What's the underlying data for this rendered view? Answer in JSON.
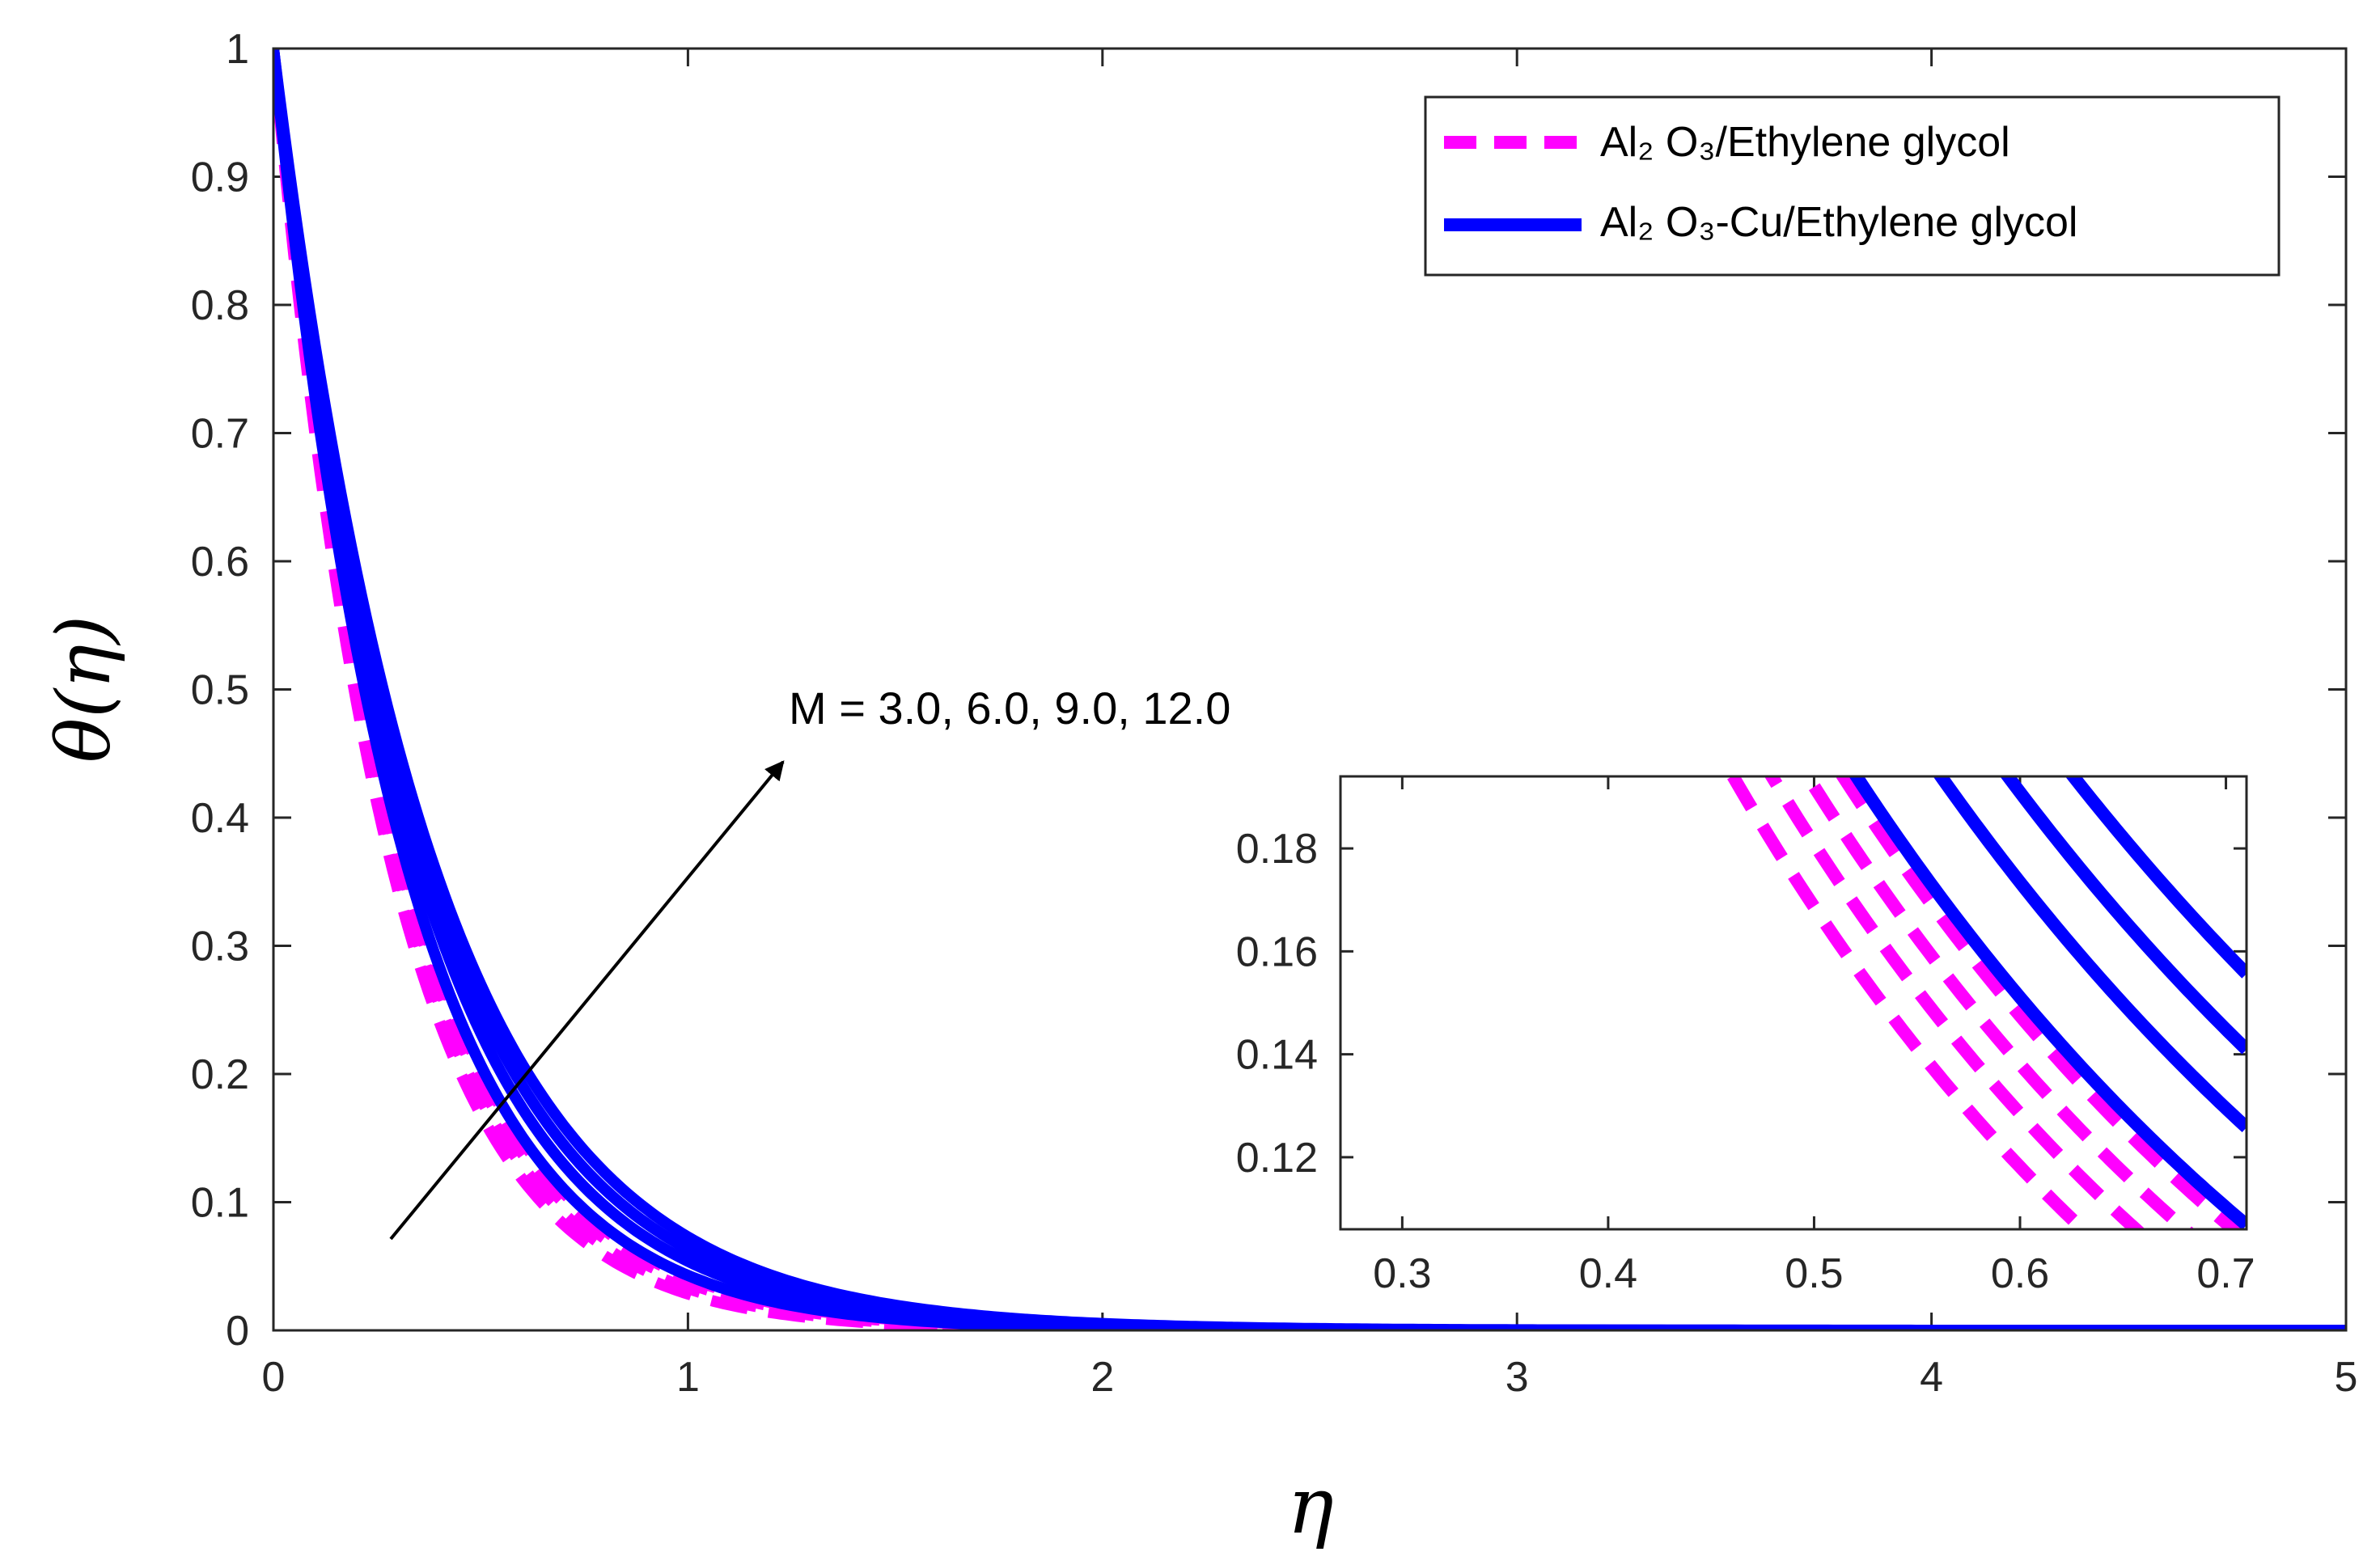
{
  "chart_data": {
    "type": "line",
    "xlabel": "η",
    "ylabel": "θ(η)",
    "xlim": [
      0,
      5
    ],
    "ylim": [
      0,
      1
    ],
    "xticks": [
      "0",
      "1",
      "2",
      "3",
      "4",
      "5"
    ],
    "yticks": [
      "0",
      "0.1",
      "0.2",
      "0.3",
      "0.4",
      "0.5",
      "0.6",
      "0.7",
      "0.8",
      "0.9",
      "1"
    ],
    "annotation": "M = 3.0, 6.0, 9.0, 12.0",
    "colors": {
      "nanofluid": "#ff00ff",
      "hybrid": "#0000ff",
      "axis": "#262626"
    },
    "legend": {
      "position": "top-right",
      "entries": [
        {
          "label": "Al₂ O₃/Ethylene glycol",
          "style": "dashed",
          "color": "#ff00ff"
        },
        {
          "label": "Al₂ O₃-Cu/Ethylene glycol",
          "style": "solid",
          "color": "#0000ff"
        }
      ]
    },
    "series": [
      {
        "name": "Al2O3/Ethylene glycol, M = 3.0",
        "group": "nanofluid",
        "decay": 3.56
      },
      {
        "name": "Al2O3/Ethylene glycol, M = 6.0",
        "group": "nanofluid",
        "decay": 3.42
      },
      {
        "name": "Al2O3/Ethylene glycol, M = 9.0",
        "group": "nanofluid",
        "decay": 3.3
      },
      {
        "name": "Al2O3/Ethylene glycol, M = 12.0",
        "group": "nanofluid",
        "decay": 3.19
      },
      {
        "name": "Al2O3-Cu/Ethylene glycol, M = 3.0",
        "group": "hybrid",
        "decay": 3.15
      },
      {
        "name": "Al2O3-Cu/Ethylene glycol, M = 6.0",
        "group": "hybrid",
        "decay": 2.92
      },
      {
        "name": "Al2O3-Cu/Ethylene glycol, M = 9.0",
        "group": "hybrid",
        "decay": 2.76
      },
      {
        "name": "Al2O3-Cu/Ethylene glycol, M = 12.0",
        "group": "hybrid",
        "decay": 2.62
      }
    ],
    "inset": {
      "xlim": [
        0.27,
        0.71
      ],
      "ylim": [
        0.106,
        0.194
      ],
      "xticks": [
        "0.3",
        "0.4",
        "0.5",
        "0.6",
        "0.7"
      ],
      "yticks": [
        "0.12",
        "0.14",
        "0.16",
        "0.18"
      ]
    }
  }
}
